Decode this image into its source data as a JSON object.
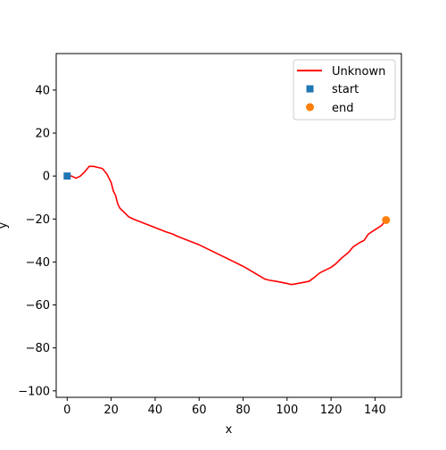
{
  "chart_data": {
    "type": "line",
    "title": "",
    "xlabel": "x",
    "ylabel": "y",
    "xlim": [
      -5,
      152
    ],
    "ylim": [
      -103,
      57
    ],
    "xticks": [
      0,
      20,
      40,
      60,
      80,
      100,
      120,
      140
    ],
    "yticks": [
      -100,
      -80,
      -60,
      -40,
      -20,
      0,
      20,
      40
    ],
    "xtick_labels": [
      "0",
      "20",
      "40",
      "60",
      "80",
      "100",
      "120",
      "140"
    ],
    "ytick_labels": [
      "−100",
      "−80",
      "−60",
      "−40",
      "−20",
      "0",
      "20",
      "40"
    ],
    "grid": false,
    "legend_position": "top-right",
    "series": [
      {
        "name": "Unknown",
        "kind": "line",
        "color": "#ff0000",
        "x": [
          0,
          2,
          4,
          6,
          8,
          10,
          12,
          14,
          16,
          18,
          19,
          20,
          21,
          22,
          23,
          24,
          26,
          28,
          30,
          35,
          40,
          45,
          48,
          50,
          55,
          60,
          65,
          70,
          75,
          80,
          85,
          90,
          92,
          95,
          100,
          102,
          105,
          110,
          112,
          115,
          120,
          122,
          125,
          128,
          130,
          133,
          135,
          137,
          140,
          143,
          145
        ],
        "y": [
          0,
          0,
          -1,
          0,
          2,
          4.5,
          4.5,
          4,
          3.5,
          1,
          -1,
          -3,
          -7,
          -9,
          -13,
          -15,
          -17,
          -19,
          -20,
          -22,
          -24,
          -26,
          -27,
          -28,
          -30,
          -32,
          -34.5,
          -37,
          -39.5,
          -42,
          -45,
          -48,
          -48.5,
          -49,
          -50,
          -50.5,
          -50,
          -49,
          -47.5,
          -45,
          -42.5,
          -41,
          -38,
          -35.5,
          -33,
          -31,
          -30,
          -27,
          -25,
          -23,
          -20.5
        ]
      },
      {
        "name": "start",
        "kind": "scatter",
        "marker": "square",
        "color": "#1f77b4",
        "x": [
          0
        ],
        "y": [
          0
        ]
      },
      {
        "name": "end",
        "kind": "scatter",
        "marker": "circle",
        "color": "#ff7f0e",
        "x": [
          145
        ],
        "y": [
          -20.5
        ]
      }
    ]
  }
}
